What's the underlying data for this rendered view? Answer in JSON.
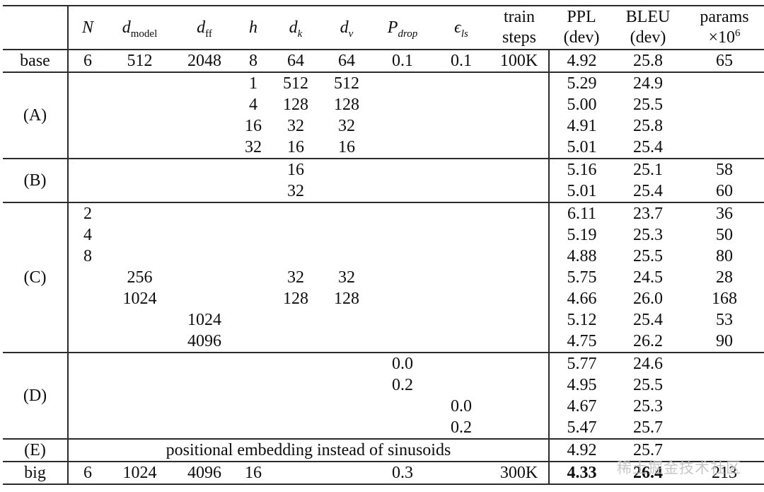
{
  "page": {
    "background": "#ffffff",
    "rule_color": "#2b2b2b",
    "text_color": "#0d0d0d"
  },
  "watermark": {
    "text": "稀土掘金技术社区",
    "color": "#c2c2c2"
  },
  "table": {
    "header": {
      "columns": [
        {
          "main": "N",
          "italic": true
        },
        {
          "main": "d",
          "italic": true,
          "sub": "model",
          "sub_italic": false
        },
        {
          "main": "d",
          "italic": true,
          "sub": "ff",
          "sub_italic": false
        },
        {
          "main": "h",
          "italic": true
        },
        {
          "main": "d",
          "italic": true,
          "sub": "k",
          "sub_italic": true
        },
        {
          "main": "d",
          "italic": true,
          "sub": "v",
          "sub_italic": true
        },
        {
          "main": "P",
          "italic": true,
          "sub": "drop",
          "sub_italic": true
        },
        {
          "main": "ϵ",
          "italic": true,
          "sub": "ls",
          "sub_italic": true
        },
        {
          "line1": "train",
          "line2": "steps"
        },
        {
          "line1": "PPL",
          "line2": "(dev)"
        },
        {
          "line1": "BLEU",
          "line2": "(dev)"
        },
        {
          "line1": "params",
          "line2": "×10",
          "line2_sup": "6"
        }
      ]
    },
    "sections": [
      {
        "label": "base",
        "rows": [
          [
            "6",
            "512",
            "2048",
            "8",
            "64",
            "64",
            "0.1",
            "0.1",
            "100K",
            "4.92",
            "25.8",
            "65"
          ]
        ]
      },
      {
        "label": "(A)",
        "rows": [
          [
            "",
            "",
            "",
            "1",
            "512",
            "512",
            "",
            "",
            "",
            "5.29",
            "24.9",
            ""
          ],
          [
            "",
            "",
            "",
            "4",
            "128",
            "128",
            "",
            "",
            "",
            "5.00",
            "25.5",
            ""
          ],
          [
            "",
            "",
            "",
            "16",
            "32",
            "32",
            "",
            "",
            "",
            "4.91",
            "25.8",
            ""
          ],
          [
            "",
            "",
            "",
            "32",
            "16",
            "16",
            "",
            "",
            "",
            "5.01",
            "25.4",
            ""
          ]
        ]
      },
      {
        "label": "(B)",
        "rows": [
          [
            "",
            "",
            "",
            "",
            "16",
            "",
            "",
            "",
            "",
            "5.16",
            "25.1",
            "58"
          ],
          [
            "",
            "",
            "",
            "",
            "32",
            "",
            "",
            "",
            "",
            "5.01",
            "25.4",
            "60"
          ]
        ]
      },
      {
        "label": "(C)",
        "rows": [
          [
            "2",
            "",
            "",
            "",
            "",
            "",
            "",
            "",
            "",
            "6.11",
            "23.7",
            "36"
          ],
          [
            "4",
            "",
            "",
            "",
            "",
            "",
            "",
            "",
            "",
            "5.19",
            "25.3",
            "50"
          ],
          [
            "8",
            "",
            "",
            "",
            "",
            "",
            "",
            "",
            "",
            "4.88",
            "25.5",
            "80"
          ],
          [
            "",
            "256",
            "",
            "",
            "32",
            "32",
            "",
            "",
            "",
            "5.75",
            "24.5",
            "28"
          ],
          [
            "",
            "1024",
            "",
            "",
            "128",
            "128",
            "",
            "",
            "",
            "4.66",
            "26.0",
            "168"
          ],
          [
            "",
            "",
            "1024",
            "",
            "",
            "",
            "",
            "",
            "",
            "5.12",
            "25.4",
            "53"
          ],
          [
            "",
            "",
            "4096",
            "",
            "",
            "",
            "",
            "",
            "",
            "4.75",
            "26.2",
            "90"
          ]
        ]
      },
      {
        "label": "(D)",
        "rows": [
          [
            "",
            "",
            "",
            "",
            "",
            "",
            "0.0",
            "",
            "",
            "5.77",
            "24.6",
            ""
          ],
          [
            "",
            "",
            "",
            "",
            "",
            "",
            "0.2",
            "",
            "",
            "4.95",
            "25.5",
            ""
          ],
          [
            "",
            "",
            "",
            "",
            "",
            "",
            "",
            "0.0",
            "",
            "4.67",
            "25.3",
            ""
          ],
          [
            "",
            "",
            "",
            "",
            "",
            "",
            "",
            "0.2",
            "",
            "5.47",
            "25.7",
            ""
          ]
        ]
      },
      {
        "label": "(E)",
        "span_text": "positional embedding instead of sinusoids",
        "rows": [
          [
            "4.92",
            "25.7",
            ""
          ]
        ]
      },
      {
        "label": "big",
        "bold_cols": [
          9,
          10
        ],
        "rows": [
          [
            "6",
            "1024",
            "4096",
            "16",
            "",
            "",
            "0.3",
            "",
            "300K",
            "4.33",
            "26.4",
            "213"
          ]
        ]
      }
    ]
  }
}
